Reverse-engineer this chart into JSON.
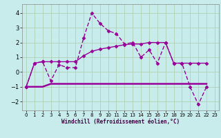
{
  "background_color": "#c8ecec",
  "grid_color": "#aaccaa",
  "line_color": "#990099",
  "xlabel": "Windchill (Refroidissement éolien,°C)",
  "xlim": [
    -0.5,
    23.5
  ],
  "ylim": [
    -2.6,
    4.6
  ],
  "yticks": [
    -2,
    -1,
    0,
    1,
    2,
    3,
    4
  ],
  "xticks": [
    0,
    1,
    2,
    3,
    4,
    5,
    6,
    7,
    8,
    9,
    10,
    11,
    12,
    13,
    14,
    15,
    16,
    17,
    18,
    19,
    20,
    21,
    22,
    23
  ],
  "series1_x": [
    0,
    1,
    2,
    3,
    4,
    5,
    6,
    7,
    8,
    9,
    10,
    11,
    12,
    13,
    14,
    15,
    16,
    17,
    18,
    19,
    20,
    21,
    22
  ],
  "series1_y": [
    -1.0,
    0.6,
    0.7,
    -0.6,
    0.5,
    0.3,
    0.3,
    2.3,
    4.0,
    3.3,
    2.8,
    2.6,
    1.9,
    2.0,
    1.0,
    1.5,
    0.6,
    2.0,
    0.6,
    0.6,
    -1.0,
    -2.2,
    -1.0
  ],
  "series2_x": [
    0,
    1,
    2,
    3,
    4,
    5,
    6,
    7,
    8,
    9,
    10,
    11,
    12,
    13,
    14,
    15,
    16,
    17,
    18,
    19,
    20,
    21,
    22
  ],
  "series2_y": [
    -1.0,
    0.6,
    0.7,
    0.7,
    0.7,
    0.7,
    0.7,
    1.1,
    1.4,
    1.55,
    1.65,
    1.75,
    1.85,
    1.9,
    1.9,
    2.0,
    2.0,
    2.0,
    0.6,
    0.6,
    0.6,
    0.6,
    0.6
  ],
  "series3_x": [
    0,
    1,
    2,
    3,
    4,
    5,
    6,
    7,
    8,
    9,
    10,
    11,
    12,
    13,
    14,
    15,
    16,
    17,
    18,
    19,
    20,
    21,
    22
  ],
  "series3_y": [
    -1.0,
    -1.0,
    -1.0,
    -0.8,
    -0.8,
    -0.8,
    -0.8,
    -0.8,
    -0.8,
    -0.8,
    -0.8,
    -0.8,
    -0.8,
    -0.8,
    -0.8,
    -0.8,
    -0.8,
    -0.8,
    -0.8,
    -0.8,
    -0.8,
    -0.8,
    -0.8
  ]
}
